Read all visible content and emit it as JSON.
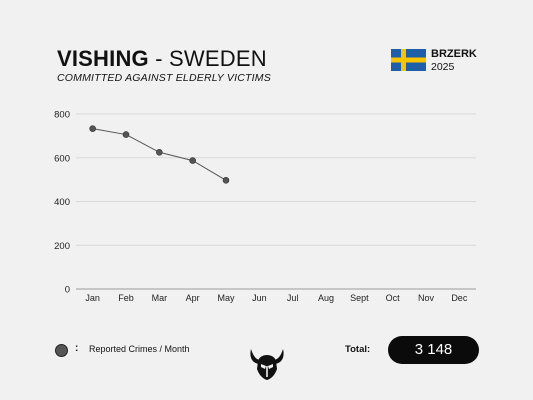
{
  "header": {
    "title_strong": "VISHING",
    "title_rest": " - SWEDEN",
    "subtitle": "COMMITTED AGAINST ELDERLY VICTIMS",
    "brand": "BRZERK",
    "year": "2025",
    "flag_colors": {
      "field": "#1f5ea8",
      "cross": "#f6c500"
    }
  },
  "chart_data": {
    "type": "line",
    "categories": [
      "Jan",
      "Feb",
      "Mar",
      "Apr",
      "May",
      "Jun",
      "Jul",
      "Aug",
      "Sept",
      "Oct",
      "Nov",
      "Dec"
    ],
    "values": [
      733,
      706,
      625,
      587,
      497,
      null,
      null,
      null,
      null,
      null,
      null,
      null
    ],
    "yticks": [
      0,
      200,
      400,
      600,
      800
    ],
    "ylim": [
      0,
      800
    ],
    "grid": true,
    "line_color": "#555555",
    "marker_color": "#555555"
  },
  "legend": {
    "colon": ":",
    "label": "Reported Crimes / Month"
  },
  "total": {
    "label": "Total:",
    "value": "3 148"
  },
  "logo_icon": "viking-helmet-icon"
}
